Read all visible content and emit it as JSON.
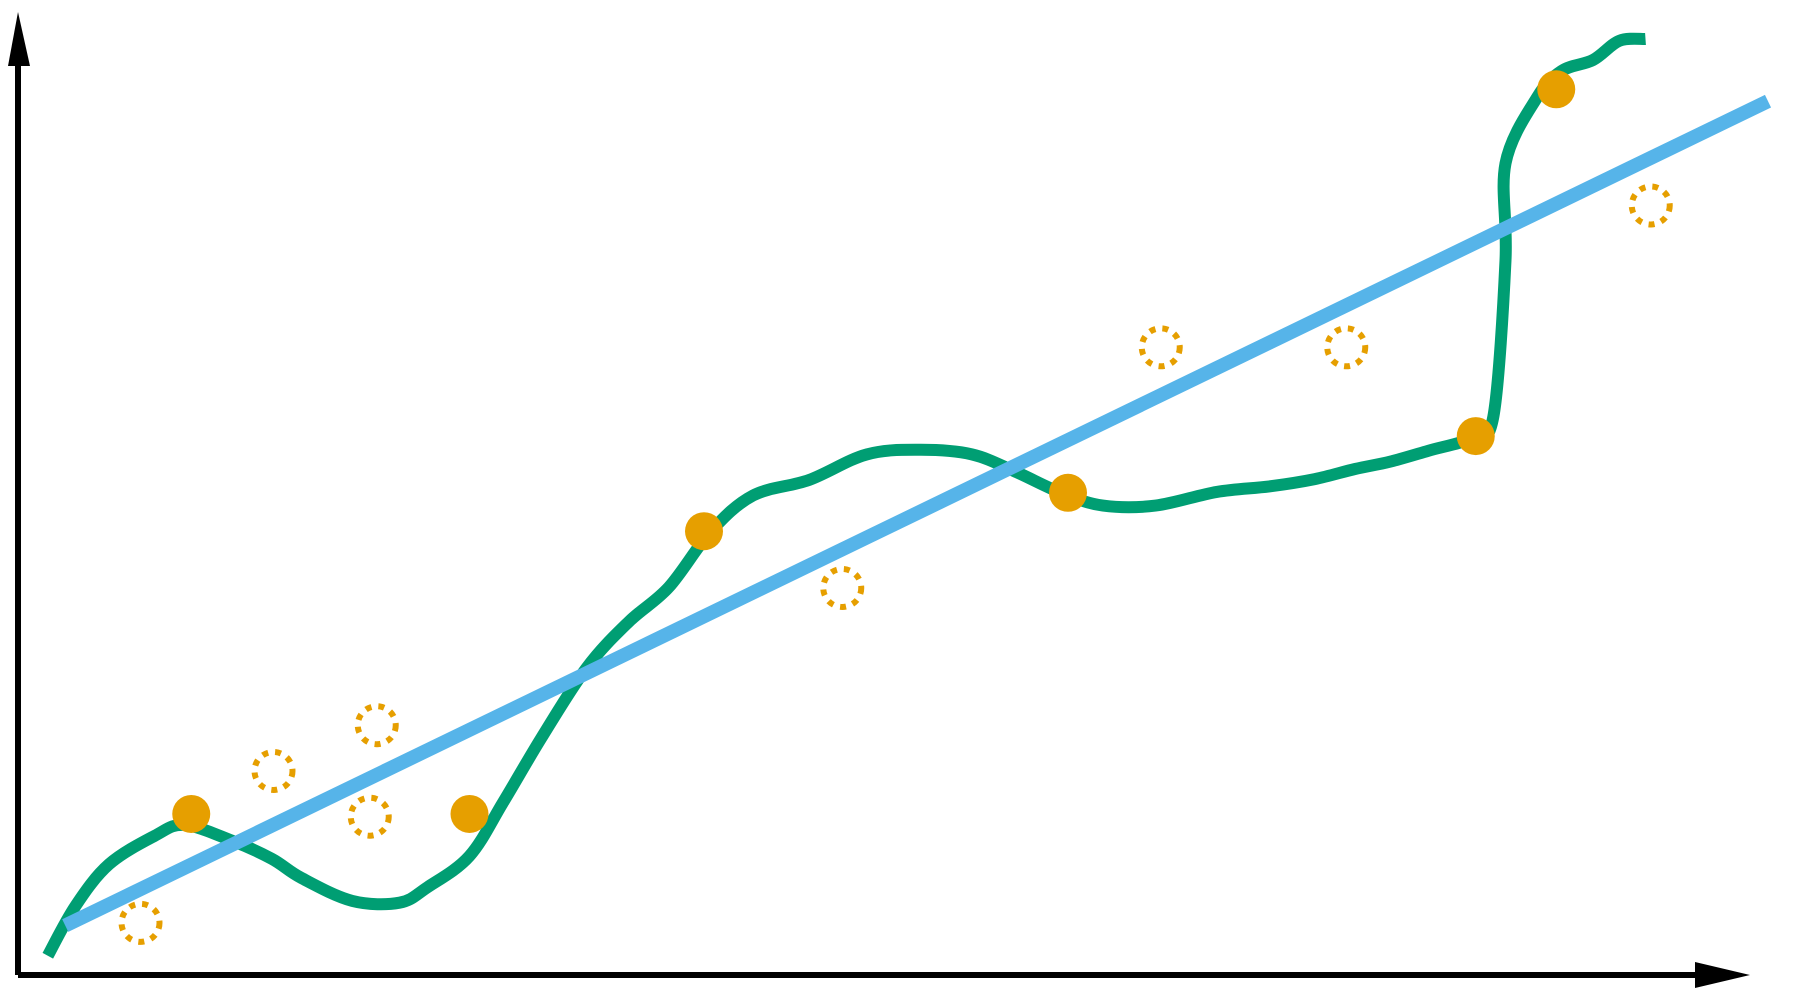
{
  "chart_data": {
    "type": "scatter",
    "title": "",
    "xlabel": "",
    "ylabel": "",
    "grid": false,
    "legend": "none",
    "xlim": [
      0,
      100
    ],
    "ylim": [
      0,
      100
    ],
    "colors": {
      "axis": "#000000",
      "curve": "#009E73",
      "fit_line": "#56B4E9",
      "points": "#E69F00"
    },
    "series": [
      {
        "type": "line",
        "points": [
          [
            1.7,
            2.1
          ],
          [
            3.3,
            7.6
          ],
          [
            5.2,
            12.1
          ],
          [
            7.8,
            15.2
          ],
          [
            9.5,
            16.4
          ],
          [
            12.2,
            14.7
          ],
          [
            14.5,
            12.7
          ],
          [
            16.2,
            10.6
          ],
          [
            19.1,
            8.1
          ],
          [
            21.8,
            7.9
          ],
          [
            23.4,
            9.6
          ],
          [
            25.8,
            13.0
          ],
          [
            27.7,
            18.8
          ],
          [
            29.9,
            25.9
          ],
          [
            32.5,
            33.6
          ],
          [
            34.9,
            38.6
          ],
          [
            37.2,
            42.4
          ],
          [
            39.6,
            48.5
          ],
          [
            42.0,
            52.4
          ],
          [
            45.2,
            54.1
          ],
          [
            48.5,
            56.9
          ],
          [
            51.6,
            57.4
          ],
          [
            54.5,
            56.9
          ],
          [
            57.0,
            55.0
          ],
          [
            59.6,
            52.7
          ],
          [
            62.0,
            51.3
          ],
          [
            65.0,
            51.3
          ],
          [
            68.5,
            52.8
          ],
          [
            71.5,
            53.4
          ],
          [
            74.1,
            54.2
          ],
          [
            76.4,
            55.3
          ],
          [
            78.4,
            56.1
          ],
          [
            80.6,
            57.3
          ],
          [
            83.1,
            58.7
          ],
          [
            84.3,
            61.0
          ],
          [
            85.0,
            78.1
          ],
          [
            85.0,
            88.7
          ],
          [
            86.8,
            95.9
          ],
          [
            88.2,
            98.8
          ],
          [
            90.0,
            100.0
          ],
          [
            91.5,
            102.1
          ],
          [
            93.0,
            102.3
          ]
        ]
      },
      {
        "type": "line",
        "points": [
          [
            2.7,
            5.4
          ],
          [
            100,
            95.5
          ]
        ]
      },
      {
        "type": "scatter",
        "marker": "filled",
        "points": [
          [
            9.9,
            17.6
          ],
          [
            25.8,
            17.6
          ],
          [
            39.2,
            48.5
          ],
          [
            60.0,
            52.7
          ],
          [
            83.3,
            58.9
          ],
          [
            87.9,
            96.8
          ]
        ]
      },
      {
        "type": "scatter",
        "marker": "dotted-ring",
        "points": [
          [
            7.0,
            5.7
          ],
          [
            14.6,
            22.3
          ],
          [
            20.1,
            17.3
          ],
          [
            20.5,
            27.3
          ],
          [
            47.1,
            42.3
          ],
          [
            65.3,
            68.6
          ],
          [
            75.9,
            68.6
          ],
          [
            93.3,
            84.1
          ]
        ]
      }
    ]
  }
}
